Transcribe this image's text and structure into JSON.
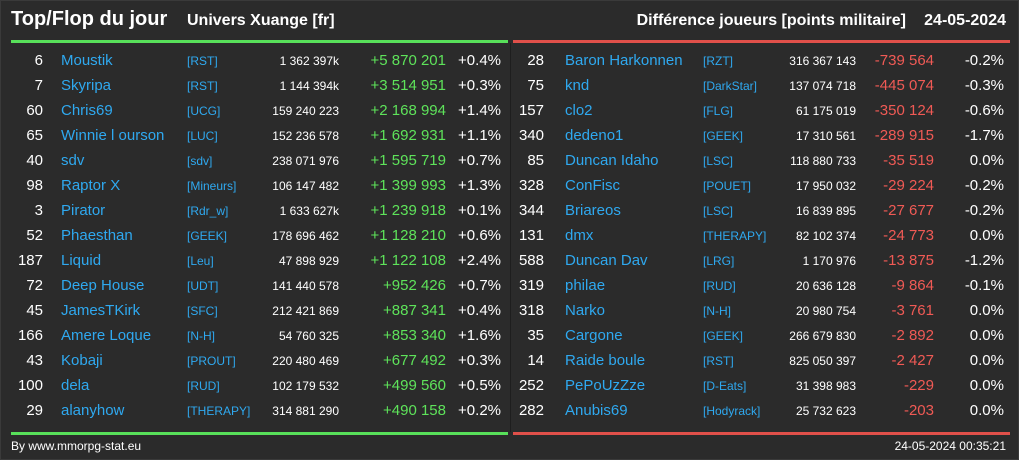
{
  "header": {
    "title": "Top/Flop du jour",
    "universe": "Univers Xuange [fr]",
    "metric": "Différence joueurs [points militaire]",
    "date": "24-05-2024"
  },
  "colors": {
    "background": "#2b2b2b",
    "name": "#2fa9f0",
    "gain": "#5ee35a",
    "loss": "#f05a55",
    "top_rule": "#58e05a",
    "flop_rule": "#e0504a"
  },
  "top": [
    {
      "rank": "6",
      "name": "Moustik",
      "alliance": "[RST]",
      "points": "1 362 397k",
      "diff": "+5 870 201",
      "pct": "+0.4%"
    },
    {
      "rank": "7",
      "name": "Skyripa",
      "alliance": "[RST]",
      "points": "1 144 394k",
      "diff": "+3 514 951",
      "pct": "+0.3%"
    },
    {
      "rank": "60",
      "name": "Chris69",
      "alliance": "[UCG]",
      "points": "159 240 223",
      "diff": "+2 168 994",
      "pct": "+1.4%"
    },
    {
      "rank": "65",
      "name": "Winnie l ourson",
      "alliance": "[LUC]",
      "points": "152 236 578",
      "diff": "+1 692 931",
      "pct": "+1.1%"
    },
    {
      "rank": "40",
      "name": "sdv",
      "alliance": "[sdv]",
      "points": "238 071 976",
      "diff": "+1 595 719",
      "pct": "+0.7%"
    },
    {
      "rank": "98",
      "name": "Raptor X",
      "alliance": "[Mineurs]",
      "points": "106 147 482",
      "diff": "+1 399 993",
      "pct": "+1.3%"
    },
    {
      "rank": "3",
      "name": "Pirator",
      "alliance": "[Rdr_w]",
      "points": "1 633 627k",
      "diff": "+1 239 918",
      "pct": "+0.1%"
    },
    {
      "rank": "52",
      "name": "Phaesthan",
      "alliance": "[GEEK]",
      "points": "178 696 462",
      "diff": "+1 128 210",
      "pct": "+0.6%"
    },
    {
      "rank": "187",
      "name": "Liquid",
      "alliance": "[Leu]",
      "points": "47 898 929",
      "diff": "+1 122 108",
      "pct": "+2.4%"
    },
    {
      "rank": "72",
      "name": "Deep House",
      "alliance": "[UDT]",
      "points": "141 440 578",
      "diff": "+952 426",
      "pct": "+0.7%"
    },
    {
      "rank": "45",
      "name": "JamesTKirk",
      "alliance": "[SFC]",
      "points": "212 421 869",
      "diff": "+887 341",
      "pct": "+0.4%"
    },
    {
      "rank": "166",
      "name": "Amere Loque",
      "alliance": "[N-H]",
      "points": "54 760 325",
      "diff": "+853 340",
      "pct": "+1.6%"
    },
    {
      "rank": "43",
      "name": "Kobaji",
      "alliance": "[PROUT]",
      "points": "220 480 469",
      "diff": "+677 492",
      "pct": "+0.3%"
    },
    {
      "rank": "100",
      "name": "dela",
      "alliance": "[RUD]",
      "points": "102 179 532",
      "diff": "+499 560",
      "pct": "+0.5%"
    },
    {
      "rank": "29",
      "name": "alanyhow",
      "alliance": "[THERAPY]",
      "points": "314 881 290",
      "diff": "+490 158",
      "pct": "+0.2%"
    }
  ],
  "flop": [
    {
      "rank": "28",
      "name": "Baron Harkonnen",
      "alliance": "[RZT]",
      "points": "316 367 143",
      "diff": "-739 564",
      "pct": "-0.2%"
    },
    {
      "rank": "75",
      "name": "knd",
      "alliance": "[DarkStar]",
      "points": "137 074 718",
      "diff": "-445 074",
      "pct": "-0.3%"
    },
    {
      "rank": "157",
      "name": "clo2",
      "alliance": "[FLG]",
      "points": "61 175 019",
      "diff": "-350 124",
      "pct": "-0.6%"
    },
    {
      "rank": "340",
      "name": "dedeno1",
      "alliance": "[GEEK]",
      "points": "17 310 561",
      "diff": "-289 915",
      "pct": "-1.7%"
    },
    {
      "rank": "85",
      "name": "Duncan Idaho",
      "alliance": "[LSC]",
      "points": "118 880 733",
      "diff": "-35 519",
      "pct": "0.0%"
    },
    {
      "rank": "328",
      "name": "ConFisc",
      "alliance": "[POUET]",
      "points": "17 950 032",
      "diff": "-29 224",
      "pct": "-0.2%"
    },
    {
      "rank": "344",
      "name": "Briareos",
      "alliance": "[LSC]",
      "points": "16 839 895",
      "diff": "-27 677",
      "pct": "-0.2%"
    },
    {
      "rank": "131",
      "name": "dmx",
      "alliance": "[THERAPY]",
      "points": "82 102 374",
      "diff": "-24 773",
      "pct": "0.0%"
    },
    {
      "rank": "588",
      "name": "Duncan Dav",
      "alliance": "[LRG]",
      "points": "1 170 976",
      "diff": "-13 875",
      "pct": "-1.2%"
    },
    {
      "rank": "319",
      "name": "philae",
      "alliance": "[RUD]",
      "points": "20 636 128",
      "diff": "-9 864",
      "pct": "-0.1%"
    },
    {
      "rank": "318",
      "name": "Narko",
      "alliance": "[N-H]",
      "points": "20 980 754",
      "diff": "-3 761",
      "pct": "0.0%"
    },
    {
      "rank": "35",
      "name": "Cargone",
      "alliance": "[GEEK]",
      "points": "266 679 830",
      "diff": "-2 892",
      "pct": "0.0%"
    },
    {
      "rank": "14",
      "name": "Raide boule",
      "alliance": "[RST]",
      "points": "825 050 397",
      "diff": "-2 427",
      "pct": "0.0%"
    },
    {
      "rank": "252",
      "name": "PePoUzZze",
      "alliance": "[D-Eats]",
      "points": "31 398 983",
      "diff": "-229",
      "pct": "0.0%"
    },
    {
      "rank": "282",
      "name": "Anubis69",
      "alliance": "[Hodyrack]",
      "points": "25 732 623",
      "diff": "-203",
      "pct": "0.0%"
    }
  ],
  "footer": {
    "credit": "By www.mmorpg-stat.eu",
    "timestamp": "24-05-2024 00:35:21"
  }
}
